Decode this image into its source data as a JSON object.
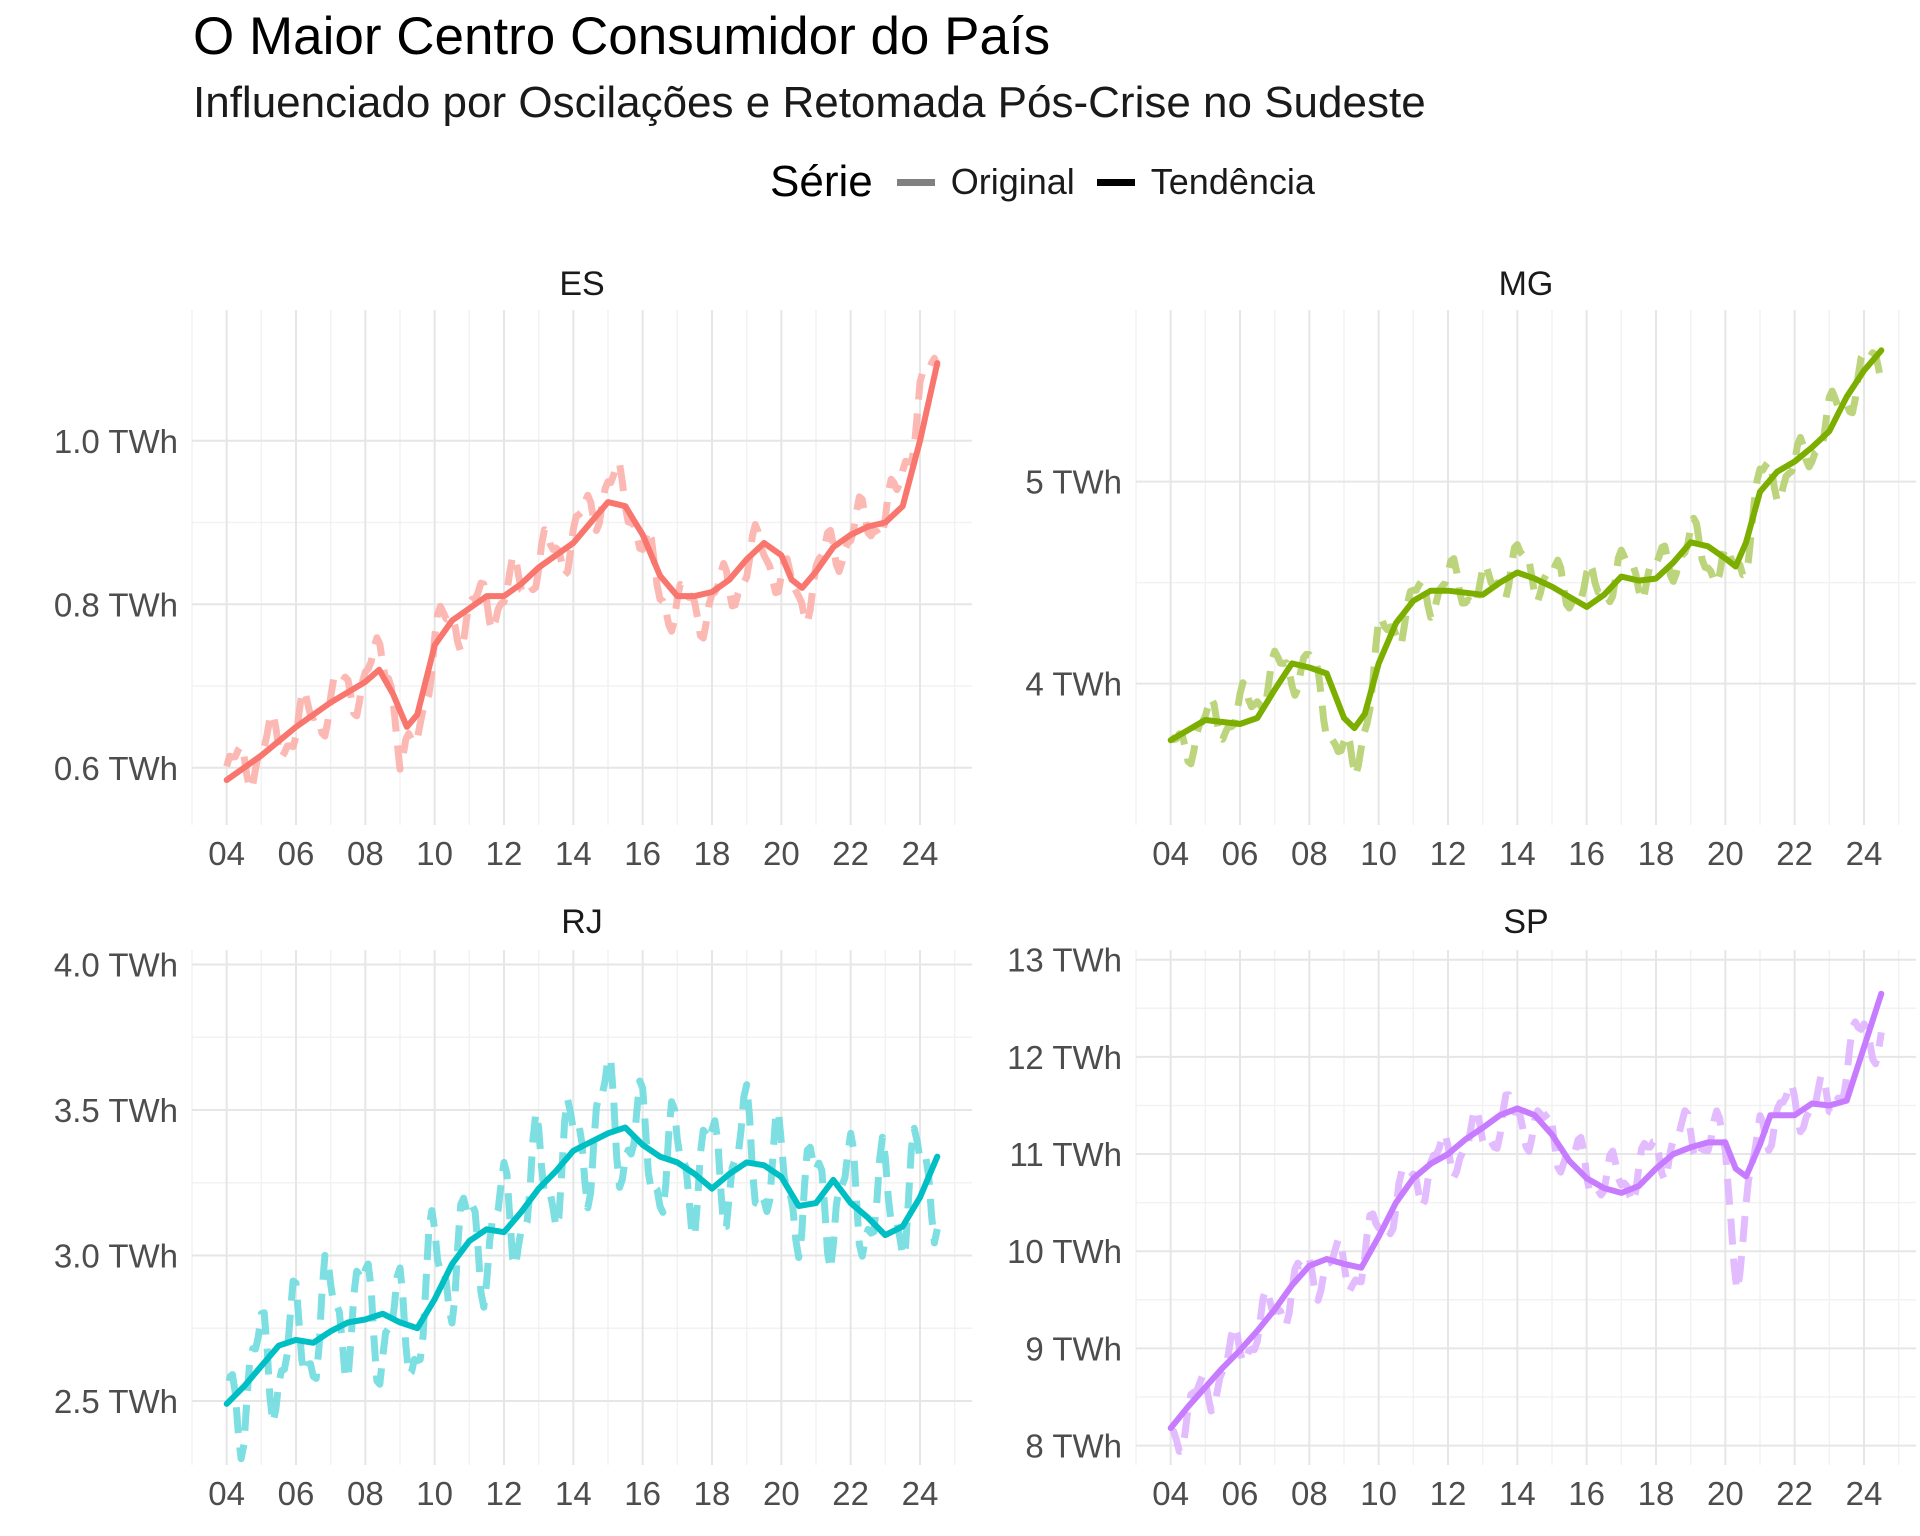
{
  "title": "O Maior Centro Consumidor do País",
  "subtitle": "Influenciado por Oscilações e Retomada Pós-Crise no Sudeste",
  "legend": {
    "title": "Série",
    "items": [
      {
        "label": "Original",
        "color": "#808080"
      },
      {
        "label": "Tendência",
        "color": "#000000"
      }
    ]
  },
  "chart_data": {
    "type": "line",
    "x_tick_labels": [
      "04",
      "06",
      "08",
      "10",
      "12",
      "14",
      "16",
      "18",
      "20",
      "22",
      "24"
    ],
    "x_ticks": [
      2004,
      2006,
      2008,
      2010,
      2012,
      2014,
      2016,
      2018,
      2020,
      2022,
      2024
    ],
    "xlim": [
      2003,
      2025.5
    ],
    "grid": true,
    "legend_position": "top",
    "panels": [
      {
        "name": "ES",
        "color": "#F8766D",
        "ylim": [
          0.53,
          1.16
        ],
        "y_ticks": [
          0.6,
          0.8,
          1.0
        ],
        "y_tick_labels": [
          "0.6 TWh",
          "0.8 TWh",
          "1.0 TWh"
        ],
        "original_anchors": [
          [
            2004.0,
            0.59
          ],
          [
            2005.0,
            0.62
          ],
          [
            2006.0,
            0.65
          ],
          [
            2007.0,
            0.68
          ],
          [
            2008.0,
            0.71
          ],
          [
            2008.7,
            0.74
          ],
          [
            2009.0,
            0.61
          ],
          [
            2009.3,
            0.6
          ],
          [
            2010.0,
            0.76
          ],
          [
            2011.0,
            0.79
          ],
          [
            2012.0,
            0.81
          ],
          [
            2013.0,
            0.85
          ],
          [
            2014.0,
            0.88
          ],
          [
            2015.0,
            0.95
          ],
          [
            2015.7,
            0.92
          ],
          [
            2016.5,
            0.81
          ],
          [
            2017.5,
            0.79
          ],
          [
            2018.5,
            0.82
          ],
          [
            2019.5,
            0.87
          ],
          [
            2020.5,
            0.8
          ],
          [
            2021.5,
            0.87
          ],
          [
            2022.5,
            0.9
          ],
          [
            2023.3,
            0.92
          ],
          [
            2024.0,
            1.06
          ],
          [
            2024.5,
            1.08
          ]
        ],
        "original_amplitude": 0.035,
        "trend": [
          [
            2004.0,
            0.585
          ],
          [
            2005.0,
            0.615
          ],
          [
            2006.0,
            0.65
          ],
          [
            2007.0,
            0.68
          ],
          [
            2008.0,
            0.705
          ],
          [
            2008.4,
            0.72
          ],
          [
            2008.8,
            0.69
          ],
          [
            2009.2,
            0.65
          ],
          [
            2009.5,
            0.665
          ],
          [
            2010.0,
            0.75
          ],
          [
            2010.5,
            0.78
          ],
          [
            2011.0,
            0.795
          ],
          [
            2011.5,
            0.81
          ],
          [
            2012.0,
            0.81
          ],
          [
            2012.5,
            0.825
          ],
          [
            2013.0,
            0.845
          ],
          [
            2014.0,
            0.875
          ],
          [
            2014.5,
            0.9
          ],
          [
            2015.0,
            0.925
          ],
          [
            2015.5,
            0.92
          ],
          [
            2016.0,
            0.885
          ],
          [
            2016.5,
            0.835
          ],
          [
            2017.0,
            0.81
          ],
          [
            2017.5,
            0.81
          ],
          [
            2018.0,
            0.815
          ],
          [
            2018.5,
            0.83
          ],
          [
            2019.0,
            0.855
          ],
          [
            2019.5,
            0.875
          ],
          [
            2020.0,
            0.86
          ],
          [
            2020.3,
            0.83
          ],
          [
            2020.6,
            0.82
          ],
          [
            2021.0,
            0.84
          ],
          [
            2021.5,
            0.87
          ],
          [
            2022.0,
            0.885
          ],
          [
            2022.5,
            0.895
          ],
          [
            2023.0,
            0.9
          ],
          [
            2023.5,
            0.92
          ],
          [
            2024.0,
            1.0
          ],
          [
            2024.5,
            1.095
          ]
        ]
      },
      {
        "name": "MG",
        "color": "#7CAE00",
        "ylim": [
          3.3,
          5.85
        ],
        "y_ticks": [
          4,
          5
        ],
        "y_tick_labels": [
          "4 TWh",
          "5 TWh"
        ],
        "original_anchors": [
          [
            2004.0,
            3.65
          ],
          [
            2005.0,
            3.8
          ],
          [
            2006.0,
            3.85
          ],
          [
            2007.0,
            4.05
          ],
          [
            2008.0,
            4.1
          ],
          [
            2008.8,
            3.7
          ],
          [
            2009.3,
            3.55
          ],
          [
            2010.0,
            4.2
          ],
          [
            2011.0,
            4.4
          ],
          [
            2012.0,
            4.5
          ],
          [
            2013.0,
            4.45
          ],
          [
            2014.0,
            4.6
          ],
          [
            2015.0,
            4.5
          ],
          [
            2016.0,
            4.45
          ],
          [
            2017.0,
            4.55
          ],
          [
            2018.0,
            4.55
          ],
          [
            2019.0,
            4.7
          ],
          [
            2020.0,
            4.55
          ],
          [
            2020.5,
            4.6
          ],
          [
            2021.0,
            5.0
          ],
          [
            2022.0,
            5.05
          ],
          [
            2023.0,
            5.3
          ],
          [
            2024.0,
            5.55
          ],
          [
            2024.5,
            5.6
          ]
        ],
        "original_amplitude": 0.12,
        "trend": [
          [
            2004.0,
            3.72
          ],
          [
            2004.5,
            3.77
          ],
          [
            2005.0,
            3.82
          ],
          [
            2005.5,
            3.81
          ],
          [
            2006.0,
            3.8
          ],
          [
            2006.5,
            3.83
          ],
          [
            2007.0,
            3.97
          ],
          [
            2007.5,
            4.1
          ],
          [
            2008.0,
            4.08
          ],
          [
            2008.5,
            4.05
          ],
          [
            2009.0,
            3.83
          ],
          [
            2009.3,
            3.78
          ],
          [
            2009.6,
            3.85
          ],
          [
            2010.0,
            4.1
          ],
          [
            2010.5,
            4.3
          ],
          [
            2011.0,
            4.41
          ],
          [
            2011.5,
            4.46
          ],
          [
            2012.0,
            4.46
          ],
          [
            2012.5,
            4.45
          ],
          [
            2013.0,
            4.44
          ],
          [
            2013.5,
            4.5
          ],
          [
            2014.0,
            4.55
          ],
          [
            2014.5,
            4.52
          ],
          [
            2015.0,
            4.48
          ],
          [
            2015.5,
            4.43
          ],
          [
            2016.0,
            4.38
          ],
          [
            2016.5,
            4.44
          ],
          [
            2017.0,
            4.53
          ],
          [
            2017.5,
            4.51
          ],
          [
            2018.0,
            4.52
          ],
          [
            2018.5,
            4.6
          ],
          [
            2019.0,
            4.7
          ],
          [
            2019.5,
            4.68
          ],
          [
            2020.0,
            4.62
          ],
          [
            2020.3,
            4.58
          ],
          [
            2020.6,
            4.7
          ],
          [
            2021.0,
            4.95
          ],
          [
            2021.5,
            5.05
          ],
          [
            2022.0,
            5.1
          ],
          [
            2022.5,
            5.17
          ],
          [
            2023.0,
            5.25
          ],
          [
            2023.5,
            5.42
          ],
          [
            2024.0,
            5.55
          ],
          [
            2024.5,
            5.65
          ]
        ]
      },
      {
        "name": "RJ",
        "color": "#00BFC4",
        "ylim": [
          2.28,
          4.05
        ],
        "y_ticks": [
          2.5,
          3.0,
          3.5,
          4.0
        ],
        "y_tick_labels": [
          "2.5 TWh",
          "3.0 TWh",
          "3.5 TWh",
          "4.0 TWh"
        ],
        "original_anchors": [
          [
            2004.0,
            2.5
          ],
          [
            2005.0,
            2.62
          ],
          [
            2006.0,
            2.68
          ],
          [
            2007.0,
            2.8
          ],
          [
            2008.0,
            2.82
          ],
          [
            2009.0,
            2.72
          ],
          [
            2009.5,
            2.75
          ],
          [
            2010.0,
            2.95
          ],
          [
            2011.0,
            3.05
          ],
          [
            2012.0,
            3.1
          ],
          [
            2013.0,
            3.25
          ],
          [
            2014.0,
            3.35
          ],
          [
            2015.0,
            3.5
          ],
          [
            2016.0,
            3.35
          ],
          [
            2017.0,
            3.3
          ],
          [
            2018.0,
            3.3
          ],
          [
            2019.0,
            3.35
          ],
          [
            2020.0,
            3.25
          ],
          [
            2021.0,
            3.2
          ],
          [
            2022.0,
            3.2
          ],
          [
            2023.0,
            3.15
          ],
          [
            2024.0,
            3.25
          ],
          [
            2024.5,
            3.3
          ]
        ],
        "original_amplitude": 0.22,
        "trend": [
          [
            2004.0,
            2.49
          ],
          [
            2004.5,
            2.55
          ],
          [
            2005.0,
            2.62
          ],
          [
            2005.5,
            2.69
          ],
          [
            2006.0,
            2.71
          ],
          [
            2006.5,
            2.7
          ],
          [
            2007.0,
            2.74
          ],
          [
            2007.5,
            2.77
          ],
          [
            2008.0,
            2.78
          ],
          [
            2008.5,
            2.8
          ],
          [
            2009.0,
            2.77
          ],
          [
            2009.5,
            2.75
          ],
          [
            2010.0,
            2.85
          ],
          [
            2010.5,
            2.97
          ],
          [
            2011.0,
            3.05
          ],
          [
            2011.5,
            3.09
          ],
          [
            2012.0,
            3.08
          ],
          [
            2012.5,
            3.15
          ],
          [
            2013.0,
            3.23
          ],
          [
            2013.5,
            3.29
          ],
          [
            2014.0,
            3.36
          ],
          [
            2014.5,
            3.39
          ],
          [
            2015.0,
            3.42
          ],
          [
            2015.5,
            3.44
          ],
          [
            2016.0,
            3.38
          ],
          [
            2016.5,
            3.34
          ],
          [
            2017.0,
            3.32
          ],
          [
            2017.5,
            3.28
          ],
          [
            2018.0,
            3.23
          ],
          [
            2018.5,
            3.28
          ],
          [
            2019.0,
            3.32
          ],
          [
            2019.5,
            3.31
          ],
          [
            2020.0,
            3.27
          ],
          [
            2020.5,
            3.17
          ],
          [
            2021.0,
            3.18
          ],
          [
            2021.5,
            3.26
          ],
          [
            2022.0,
            3.18
          ],
          [
            2022.5,
            3.13
          ],
          [
            2023.0,
            3.07
          ],
          [
            2023.5,
            3.1
          ],
          [
            2024.0,
            3.2
          ],
          [
            2024.5,
            3.34
          ]
        ]
      },
      {
        "name": "SP",
        "color": "#C77CFF",
        "ylim": [
          7.8,
          13.1
        ],
        "y_ticks": [
          8,
          9,
          10,
          11,
          12,
          13
        ],
        "y_tick_labels": [
          "8 TWh",
          "9 TWh",
          "10 TWh",
          "11 TWh",
          "12 TWh",
          "13 TWh"
        ],
        "original_anchors": [
          [
            2004.0,
            8.1
          ],
          [
            2005.0,
            8.55
          ],
          [
            2006.0,
            9.0
          ],
          [
            2007.0,
            9.4
          ],
          [
            2008.0,
            9.8
          ],
          [
            2009.0,
            9.85
          ],
          [
            2009.5,
            9.8
          ],
          [
            2010.0,
            10.3
          ],
          [
            2011.0,
            10.7
          ],
          [
            2012.0,
            11.0
          ],
          [
            2013.0,
            11.2
          ],
          [
            2014.0,
            11.4
          ],
          [
            2015.0,
            11.2
          ],
          [
            2016.0,
            10.8
          ],
          [
            2017.0,
            10.7
          ],
          [
            2018.0,
            11.0
          ],
          [
            2019.0,
            11.2
          ],
          [
            2020.0,
            11.1
          ],
          [
            2020.3,
            9.8
          ],
          [
            2020.6,
            10.3
          ],
          [
            2021.0,
            11.3
          ],
          [
            2022.0,
            11.5
          ],
          [
            2023.0,
            11.5
          ],
          [
            2024.0,
            12.3
          ],
          [
            2024.5,
            12.2
          ]
        ],
        "original_amplitude": 0.28,
        "trend": [
          [
            2004.0,
            8.18
          ],
          [
            2004.5,
            8.4
          ],
          [
            2005.0,
            8.6
          ],
          [
            2005.5,
            8.8
          ],
          [
            2006.0,
            8.98
          ],
          [
            2006.5,
            9.18
          ],
          [
            2007.0,
            9.4
          ],
          [
            2007.5,
            9.65
          ],
          [
            2008.0,
            9.85
          ],
          [
            2008.5,
            9.92
          ],
          [
            2009.0,
            9.87
          ],
          [
            2009.5,
            9.83
          ],
          [
            2010.0,
            10.15
          ],
          [
            2010.5,
            10.5
          ],
          [
            2011.0,
            10.75
          ],
          [
            2011.5,
            10.9
          ],
          [
            2012.0,
            11.0
          ],
          [
            2012.5,
            11.15
          ],
          [
            2013.0,
            11.27
          ],
          [
            2013.5,
            11.4
          ],
          [
            2014.0,
            11.47
          ],
          [
            2014.5,
            11.4
          ],
          [
            2015.0,
            11.2
          ],
          [
            2015.5,
            10.93
          ],
          [
            2016.0,
            10.75
          ],
          [
            2016.5,
            10.65
          ],
          [
            2017.0,
            10.6
          ],
          [
            2017.5,
            10.67
          ],
          [
            2018.0,
            10.85
          ],
          [
            2018.5,
            11.0
          ],
          [
            2019.0,
            11.07
          ],
          [
            2019.5,
            11.12
          ],
          [
            2020.0,
            11.12
          ],
          [
            2020.3,
            10.85
          ],
          [
            2020.6,
            10.77
          ],
          [
            2021.0,
            11.1
          ],
          [
            2021.3,
            11.4
          ],
          [
            2021.6,
            11.4
          ],
          [
            2022.0,
            11.4
          ],
          [
            2022.5,
            11.52
          ],
          [
            2023.0,
            11.5
          ],
          [
            2023.5,
            11.55
          ],
          [
            2024.0,
            12.1
          ],
          [
            2024.5,
            12.65
          ]
        ]
      }
    ]
  }
}
